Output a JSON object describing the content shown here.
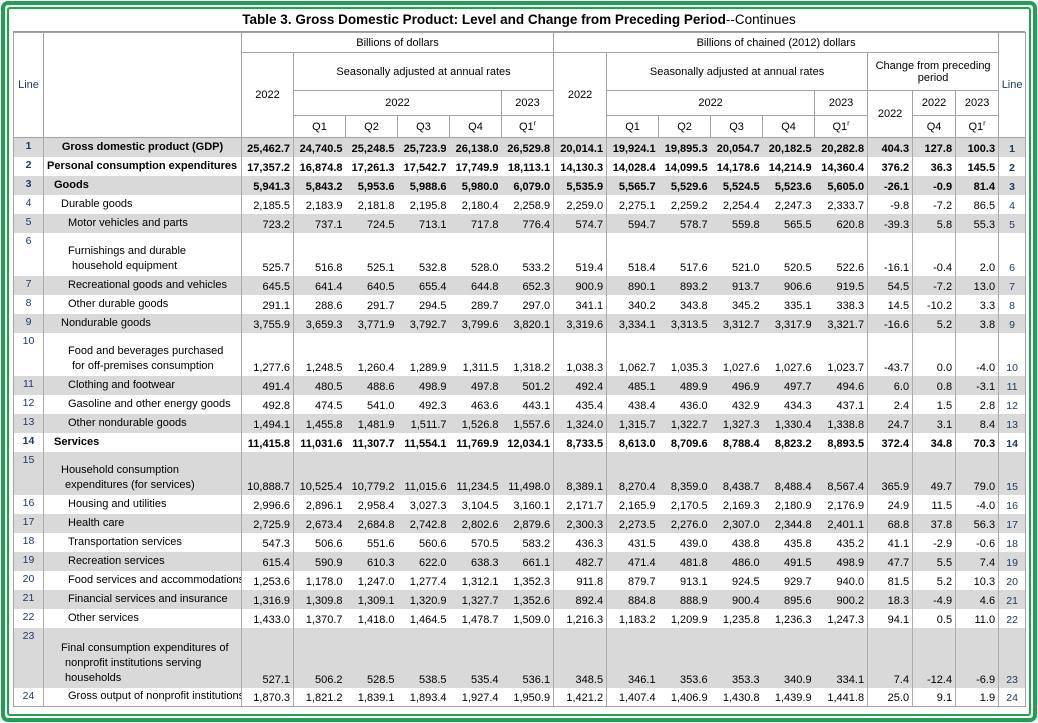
{
  "title": {
    "main": "Table 3. Gross Domestic Product: Level and Change from Preceding Period",
    "cont": "--Continues"
  },
  "header": {
    "line": "Line",
    "group_dollars": "Billions of dollars",
    "group_chained": "Billions of chained (2012) dollars",
    "saar": "Seasonally adjusted at annual rates",
    "change_group": "Change from preceding period",
    "y2022": "2022",
    "y2023": "2023",
    "q1": "Q1",
    "q2": "Q2",
    "q3": "Q3",
    "q4": "Q4",
    "rev": "r"
  },
  "chart_data": {
    "type": "table",
    "columns": [
      "dollars_2022_annual",
      "dollars_2022_Q1",
      "dollars_2022_Q2",
      "dollars_2022_Q3",
      "dollars_2022_Q4",
      "dollars_2023_Q1r",
      "chained_2022_annual",
      "chained_2022_Q1",
      "chained_2022_Q2",
      "chained_2022_Q3",
      "chained_2022_Q4",
      "chained_2023_Q1r",
      "change_2022_annual",
      "change_2022_Q4",
      "change_2023_Q1r"
    ],
    "rows": [
      {
        "line": "1",
        "label_lines": [
          "Gross domestic product (GDP)"
        ],
        "indent": 0,
        "bold": true,
        "center": true,
        "values": [
          "25,462.7",
          "24,740.5",
          "25,248.5",
          "25,723.9",
          "26,138.0",
          "26,529.8",
          "20,014.1",
          "19,924.1",
          "19,895.3",
          "20,054.7",
          "20,182.5",
          "20,282.8",
          "404.3",
          "127.8",
          "100.3"
        ]
      },
      {
        "line": "2",
        "label_lines": [
          "Personal consumption expenditures"
        ],
        "indent": 0,
        "bold": true,
        "center": false,
        "values": [
          "17,357.2",
          "16,874.8",
          "17,261.3",
          "17,542.7",
          "17,749.9",
          "18,113.1",
          "14,130.3",
          "14,028.4",
          "14,099.5",
          "14,178.6",
          "14,214.9",
          "14,360.4",
          "376.2",
          "36.3",
          "145.5"
        ]
      },
      {
        "line": "3",
        "label_lines": [
          "Goods"
        ],
        "indent": 1,
        "bold": true,
        "center": false,
        "values": [
          "5,941.3",
          "5,843.2",
          "5,953.6",
          "5,988.6",
          "5,980.0",
          "6,079.0",
          "5,535.9",
          "5,565.7",
          "5,529.6",
          "5,524.5",
          "5,523.6",
          "5,605.0",
          "-26.1",
          "-0.9",
          "81.4"
        ]
      },
      {
        "line": "4",
        "label_lines": [
          "Durable goods"
        ],
        "indent": 2,
        "bold": false,
        "center": false,
        "values": [
          "2,185.5",
          "2,183.9",
          "2,181.8",
          "2,195.8",
          "2,180.4",
          "2,258.9",
          "2,259.0",
          "2,275.1",
          "2,259.2",
          "2,254.4",
          "2,247.3",
          "2,333.7",
          "-9.8",
          "-7.2",
          "86.5"
        ]
      },
      {
        "line": "5",
        "label_lines": [
          "Motor vehicles and parts"
        ],
        "indent": 3,
        "bold": false,
        "center": false,
        "values": [
          "723.2",
          "737.1",
          "724.5",
          "713.1",
          "717.8",
          "776.4",
          "574.7",
          "594.7",
          "578.7",
          "559.8",
          "565.5",
          "620.8",
          "-39.3",
          "5.8",
          "55.3"
        ]
      },
      {
        "line": "6",
        "label_lines": [
          "Furnishings and durable",
          "household equipment"
        ],
        "indent": 3,
        "bold": false,
        "center": false,
        "values": [
          "525.7",
          "516.8",
          "525.1",
          "532.8",
          "528.0",
          "533.2",
          "519.4",
          "518.4",
          "517.6",
          "521.0",
          "520.5",
          "522.6",
          "-16.1",
          "-0.4",
          "2.0"
        ]
      },
      {
        "line": "7",
        "label_lines": [
          "Recreational goods and vehicles"
        ],
        "indent": 3,
        "bold": false,
        "center": false,
        "values": [
          "645.5",
          "641.4",
          "640.5",
          "655.4",
          "644.8",
          "652.3",
          "900.9",
          "890.1",
          "893.2",
          "913.7",
          "906.6",
          "919.5",
          "54.5",
          "-7.2",
          "13.0"
        ]
      },
      {
        "line": "8",
        "label_lines": [
          "Other durable goods"
        ],
        "indent": 3,
        "bold": false,
        "center": false,
        "values": [
          "291.1",
          "288.6",
          "291.7",
          "294.5",
          "289.7",
          "297.0",
          "341.1",
          "340.2",
          "343.8",
          "345.2",
          "335.1",
          "338.3",
          "14.5",
          "-10.2",
          "3.3"
        ]
      },
      {
        "line": "9",
        "label_lines": [
          "Nondurable goods"
        ],
        "indent": 2,
        "bold": false,
        "center": false,
        "values": [
          "3,755.9",
          "3,659.3",
          "3,771.9",
          "3,792.7",
          "3,799.6",
          "3,820.1",
          "3,319.6",
          "3,334.1",
          "3,313.5",
          "3,312.7",
          "3,317.9",
          "3,321.7",
          "-16.6",
          "5.2",
          "3.8"
        ]
      },
      {
        "line": "10",
        "label_lines": [
          "Food and beverages purchased",
          "for off-premises consumption"
        ],
        "indent": 3,
        "bold": false,
        "center": false,
        "values": [
          "1,277.6",
          "1,248.5",
          "1,260.4",
          "1,289.9",
          "1,311.5",
          "1,318.2",
          "1,038.3",
          "1,062.7",
          "1,035.3",
          "1,027.6",
          "1,027.6",
          "1,023.7",
          "-43.7",
          "0.0",
          "-4.0"
        ]
      },
      {
        "line": "11",
        "label_lines": [
          "Clothing and footwear"
        ],
        "indent": 3,
        "bold": false,
        "center": false,
        "values": [
          "491.4",
          "480.5",
          "488.6",
          "498.9",
          "497.8",
          "501.2",
          "492.4",
          "485.1",
          "489.9",
          "496.9",
          "497.7",
          "494.6",
          "6.0",
          "0.8",
          "-3.1"
        ]
      },
      {
        "line": "12",
        "label_lines": [
          "Gasoline and other energy goods"
        ],
        "indent": 3,
        "bold": false,
        "center": false,
        "values": [
          "492.8",
          "474.5",
          "541.0",
          "492.3",
          "463.6",
          "443.1",
          "435.4",
          "438.4",
          "436.0",
          "432.9",
          "434.3",
          "437.1",
          "2.4",
          "1.5",
          "2.8"
        ]
      },
      {
        "line": "13",
        "label_lines": [
          "Other nondurable goods"
        ],
        "indent": 3,
        "bold": false,
        "center": false,
        "values": [
          "1,494.1",
          "1,455.8",
          "1,481.9",
          "1,511.7",
          "1,526.8",
          "1,557.6",
          "1,324.0",
          "1,315.7",
          "1,322.7",
          "1,327.3",
          "1,330.4",
          "1,338.8",
          "24.7",
          "3.1",
          "8.4"
        ]
      },
      {
        "line": "14",
        "label_lines": [
          "Services"
        ],
        "indent": 1,
        "bold": true,
        "center": false,
        "values": [
          "11,415.8",
          "11,031.6",
          "11,307.7",
          "11,554.1",
          "11,769.9",
          "12,034.1",
          "8,733.5",
          "8,613.0",
          "8,709.6",
          "8,788.4",
          "8,823.2",
          "8,893.5",
          "372.4",
          "34.8",
          "70.3"
        ]
      },
      {
        "line": "15",
        "label_lines": [
          "Household consumption",
          "expenditures (for services)"
        ],
        "indent": 2,
        "bold": false,
        "center": false,
        "values": [
          "10,888.7",
          "10,525.4",
          "10,779.2",
          "11,015.6",
          "11,234.5",
          "11,498.0",
          "8,389.1",
          "8,270.4",
          "8,359.0",
          "8,438.7",
          "8,488.4",
          "8,567.4",
          "365.9",
          "49.7",
          "79.0"
        ]
      },
      {
        "line": "16",
        "label_lines": [
          "Housing and utilities"
        ],
        "indent": 3,
        "bold": false,
        "center": false,
        "values": [
          "2,996.6",
          "2,896.1",
          "2,958.4",
          "3,027.3",
          "3,104.5",
          "3,160.1",
          "2,171.7",
          "2,165.9",
          "2,170.5",
          "2,169.3",
          "2,180.9",
          "2,176.9",
          "24.9",
          "11.5",
          "-4.0"
        ]
      },
      {
        "line": "17",
        "label_lines": [
          "Health care"
        ],
        "indent": 3,
        "bold": false,
        "center": false,
        "values": [
          "2,725.9",
          "2,673.4",
          "2,684.8",
          "2,742.8",
          "2,802.6",
          "2,879.6",
          "2,300.3",
          "2,273.5",
          "2,276.0",
          "2,307.0",
          "2,344.8",
          "2,401.1",
          "68.8",
          "37.8",
          "56.3"
        ]
      },
      {
        "line": "18",
        "label_lines": [
          "Transportation services"
        ],
        "indent": 3,
        "bold": false,
        "center": false,
        "values": [
          "547.3",
          "506.6",
          "551.6",
          "560.6",
          "570.5",
          "583.2",
          "436.3",
          "431.5",
          "439.0",
          "438.8",
          "435.8",
          "435.2",
          "41.1",
          "-2.9",
          "-0.6"
        ]
      },
      {
        "line": "19",
        "label_lines": [
          "Recreation services"
        ],
        "indent": 3,
        "bold": false,
        "center": false,
        "values": [
          "615.4",
          "590.9",
          "610.3",
          "622.0",
          "638.3",
          "661.1",
          "482.7",
          "471.4",
          "481.8",
          "486.0",
          "491.5",
          "498.9",
          "47.7",
          "5.5",
          "7.4"
        ]
      },
      {
        "line": "20",
        "label_lines": [
          "Food services and accommodations"
        ],
        "indent": 3,
        "bold": false,
        "center": false,
        "values": [
          "1,253.6",
          "1,178.0",
          "1,247.0",
          "1,277.4",
          "1,312.1",
          "1,352.3",
          "911.8",
          "879.7",
          "913.1",
          "924.5",
          "929.7",
          "940.0",
          "81.5",
          "5.2",
          "10.3"
        ]
      },
      {
        "line": "21",
        "label_lines": [
          "Financial services and insurance"
        ],
        "indent": 3,
        "bold": false,
        "center": false,
        "values": [
          "1,316.9",
          "1,309.8",
          "1,309.1",
          "1,320.9",
          "1,327.7",
          "1,352.6",
          "892.4",
          "884.8",
          "888.9",
          "900.4",
          "895.6",
          "900.2",
          "18.3",
          "-4.9",
          "4.6"
        ]
      },
      {
        "line": "22",
        "label_lines": [
          "Other services"
        ],
        "indent": 3,
        "bold": false,
        "center": false,
        "values": [
          "1,433.0",
          "1,370.7",
          "1,418.0",
          "1,464.5",
          "1,478.7",
          "1,509.0",
          "1,216.3",
          "1,183.2",
          "1,209.9",
          "1,235.8",
          "1,236.3",
          "1,247.3",
          "94.1",
          "0.5",
          "11.0"
        ]
      },
      {
        "line": "23",
        "label_lines": [
          "Final consumption expenditures of",
          "nonprofit institutions serving",
          "households"
        ],
        "indent": 2,
        "bold": false,
        "center": false,
        "values": [
          "527.1",
          "506.2",
          "528.5",
          "538.5",
          "535.4",
          "536.1",
          "348.5",
          "346.1",
          "353.6",
          "353.3",
          "340.9",
          "334.1",
          "7.4",
          "-12.4",
          "-6.9"
        ]
      },
      {
        "line": "24",
        "label_lines": [
          "Gross output of nonprofit institutions"
        ],
        "indent": 3,
        "bold": false,
        "center": false,
        "values": [
          "1,870.3",
          "1,821.2",
          "1,839.1",
          "1,893.4",
          "1,927.4",
          "1,950.9",
          "1,421.2",
          "1,407.4",
          "1,406.9",
          "1,430.8",
          "1,439.9",
          "1,441.8",
          "25.0",
          "9.1",
          "1.9"
        ]
      }
    ]
  },
  "style": {
    "frame_green": "#1ea24f",
    "row_shade_gray": "#d9d9d9",
    "grid_gray": "#a3a3a3",
    "line_number_navy": "#1f3864"
  }
}
